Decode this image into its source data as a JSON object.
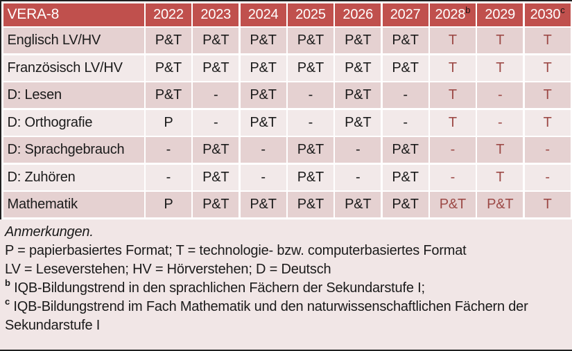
{
  "table": {
    "title": "VERA-8",
    "years": [
      {
        "label": "2022",
        "sup": ""
      },
      {
        "label": "2023",
        "sup": ""
      },
      {
        "label": "2024",
        "sup": ""
      },
      {
        "label": "2025",
        "sup": ""
      },
      {
        "label": "2026",
        "sup": ""
      },
      {
        "label": "2027",
        "sup": ""
      },
      {
        "label": "2028",
        "sup": "b"
      },
      {
        "label": "2029",
        "sup": ""
      },
      {
        "label": "2030",
        "sup": "c"
      }
    ],
    "accent_columns_start": 6,
    "rows": [
      {
        "label": "Englisch LV/HV",
        "values": [
          "P&T",
          "P&T",
          "P&T",
          "P&T",
          "P&T",
          "P&T",
          "T",
          "T",
          "T"
        ]
      },
      {
        "label": "Französisch LV/HV",
        "values": [
          "P&T",
          "P&T",
          "P&T",
          "P&T",
          "P&T",
          "P&T",
          "T",
          "T",
          "T"
        ]
      },
      {
        "label": "D: Lesen",
        "values": [
          "P&T",
          "-",
          "P&T",
          "-",
          "P&T",
          "-",
          "T",
          "-",
          "T"
        ]
      },
      {
        "label": "D: Orthografie",
        "values": [
          "P",
          "-",
          "P&T",
          "-",
          "P&T",
          "-",
          "T",
          "-",
          "T"
        ]
      },
      {
        "label": "D: Sprachgebrauch",
        "values": [
          "-",
          "P&T",
          "-",
          "P&T",
          "-",
          "P&T",
          "-",
          "T",
          "-"
        ]
      },
      {
        "label": "D: Zuhören",
        "values": [
          "-",
          "P&T",
          "-",
          "P&T",
          "-",
          "P&T",
          "-",
          "T",
          "-"
        ]
      },
      {
        "label": "Mathematik",
        "values": [
          "P",
          "P&T",
          "P&T",
          "P&T",
          "P&T",
          "P&T",
          "P&T",
          "P&T",
          "T"
        ]
      }
    ]
  },
  "notes": {
    "heading": "Anmerkungen.",
    "format_note": "P = papierbasiertes Format; T = technologie- bzw. computerbasiertes Format",
    "abbrev_note": "LV = Leseverstehen; HV = Hörverstehen; D = Deutsch",
    "note_b": {
      "sup": "b",
      "text": "IQB-Bildungstrend in den sprachlichen Fächern der Sekundarstufe I;"
    },
    "note_c": {
      "sup": "c",
      "text": "IQB-Bildungstrend im Fach Mathematik und den naturwissenschaftlichen Fächern der Sekundarstufe I"
    }
  },
  "colors": {
    "header_bg": "#c0504d",
    "band_dark": "#e5d1d1",
    "band_light": "#f2e9e9",
    "notes_bg": "#f1e6e6",
    "accent_text": "#9c4946",
    "header_text": "#ffffff",
    "body_text": "#1a1a1a"
  }
}
